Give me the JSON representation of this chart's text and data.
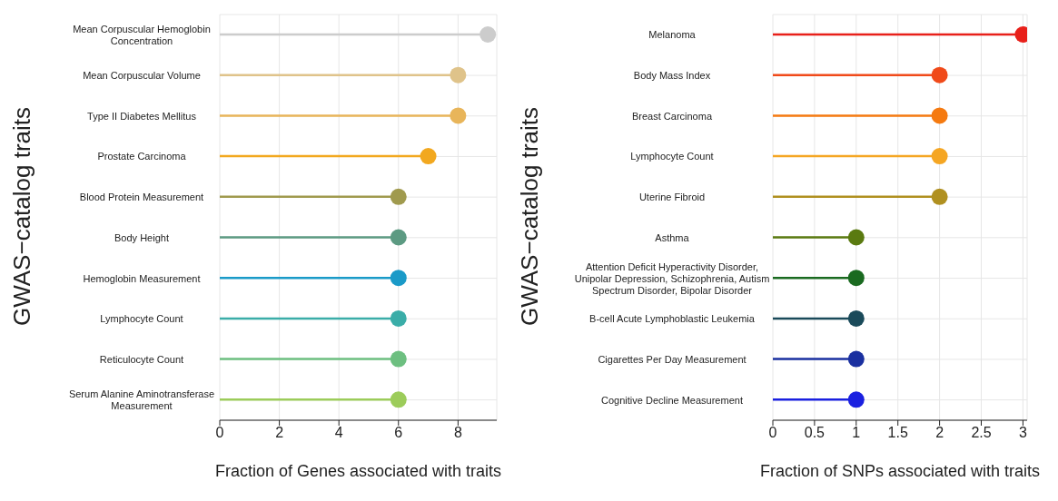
{
  "chart_data": [
    {
      "type": "lollipop",
      "orientation": "horizontal",
      "xlabel": "Fraction of Genes associated with traits",
      "ylabel": "GWAS−catalog traits",
      "categories": [
        "Mean Corpuscular Hemoglobin Concentration",
        "Mean Corpuscular Volume",
        "Type II Diabetes Mellitus",
        "Prostate Carcinoma",
        "Blood Protein Measurement",
        "Body Height",
        "Hemoglobin Measurement",
        "Lymphocyte Count",
        "Reticulocyte Count",
        "Serum Alanine Aminotransferase Measurement"
      ],
      "values": [
        9,
        8,
        8,
        7,
        6,
        6,
        6,
        6,
        6,
        6
      ],
      "colors": [
        "#cccccc",
        "#dfc38a",
        "#e8b55a",
        "#f2a81f",
        "#a09a4e",
        "#5c9a82",
        "#1a9ac8",
        "#3aada8",
        "#6dbf80",
        "#9ccc5a"
      ],
      "xlim": [
        0,
        9.3
      ],
      "xticks": [
        0,
        2,
        4,
        6,
        8
      ],
      "grid": true,
      "marker": "circle"
    },
    {
      "type": "lollipop",
      "orientation": "horizontal",
      "xlabel": "Fraction of SNPs associated with traits",
      "ylabel": "GWAS−catalog traits",
      "categories": [
        "Melanoma",
        "Body Mass Index",
        "Breast Carcinoma",
        "Lymphocyte Count",
        "Uterine Fibroid",
        "Asthma",
        "Attention Deficit Hyperactivity Disorder, Unipolar Depression, Schizophrenia, Autism Spectrum Disorder, Bipolar Disorder",
        "B-cell Acute Lymphoblastic Leukemia",
        "Cigarettes Per Day Measurement",
        "Cognitive Decline Measurement"
      ],
      "values": [
        3,
        2,
        2,
        2,
        2,
        1,
        1,
        1,
        1,
        1
      ],
      "colors": [
        "#e8201a",
        "#f04a1a",
        "#f57a10",
        "#f5a623",
        "#b09020",
        "#5a7a10",
        "#1a6a20",
        "#1a4a5a",
        "#1a30a0",
        "#1a20e0"
      ],
      "xlim": [
        0,
        3.05
      ],
      "xticks": [
        0,
        0.5,
        1,
        1.5,
        2,
        2.5,
        3
      ],
      "grid": true,
      "marker": "circle"
    }
  ]
}
